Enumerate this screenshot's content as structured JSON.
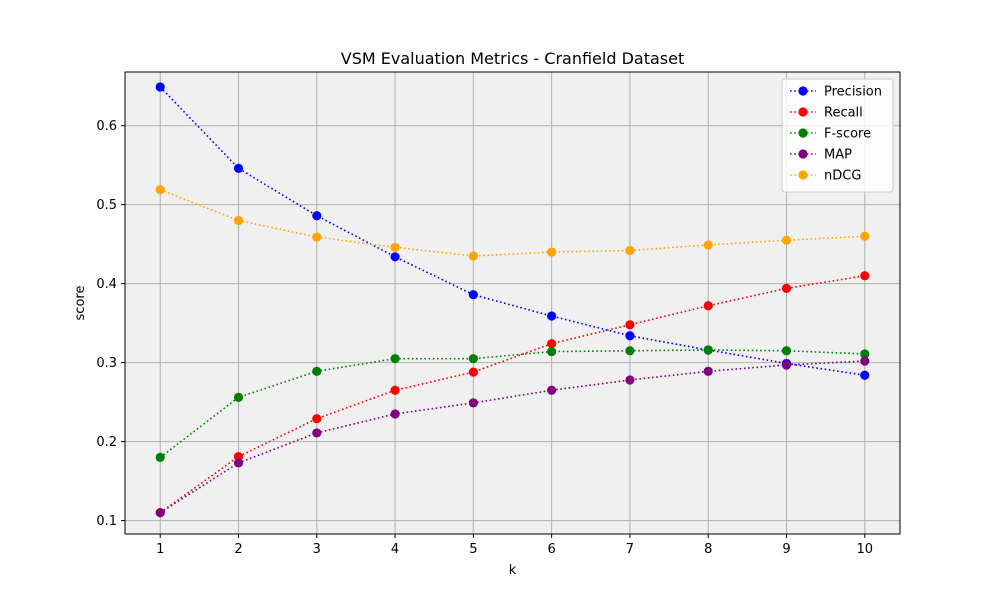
{
  "chart_data": {
    "type": "line",
    "title": "VSM Evaluation Metrics - Cranfield Dataset",
    "xlabel": "k",
    "ylabel": "score",
    "x": [
      1,
      2,
      3,
      4,
      5,
      6,
      7,
      8,
      9,
      10
    ],
    "xticks": [
      "1",
      "2",
      "3",
      "4",
      "5",
      "6",
      "7",
      "8",
      "9",
      "10"
    ],
    "yticks": [
      "0.1",
      "0.2",
      "0.3",
      "0.4",
      "0.5",
      "0.6"
    ],
    "ylim": [
      0.083,
      0.668
    ],
    "xlim": [
      0.55,
      10.45
    ],
    "grid": true,
    "legend_position": "top-right",
    "line_style": "dotted",
    "marker": "circle",
    "background": "#f0f0f0",
    "series": [
      {
        "name": "Precision",
        "color": "#0000ff",
        "values": [
          0.649,
          0.546,
          0.486,
          0.434,
          0.386,
          0.359,
          0.334,
          0.316,
          0.299,
          0.284
        ]
      },
      {
        "name": "Recall",
        "color": "#ff0000",
        "values": [
          0.11,
          0.181,
          0.229,
          0.265,
          0.288,
          0.324,
          0.348,
          0.372,
          0.394,
          0.41
        ]
      },
      {
        "name": "F-score",
        "color": "#008000",
        "values": [
          0.18,
          0.256,
          0.289,
          0.305,
          0.305,
          0.314,
          0.315,
          0.316,
          0.315,
          0.311
        ]
      },
      {
        "name": "MAP",
        "color": "#800080",
        "values": [
          0.11,
          0.173,
          0.211,
          0.235,
          0.249,
          0.265,
          0.278,
          0.289,
          0.297,
          0.302
        ]
      },
      {
        "name": "nDCG",
        "color": "#ffa500",
        "values": [
          0.519,
          0.48,
          0.459,
          0.446,
          0.435,
          0.44,
          0.442,
          0.449,
          0.455,
          0.46
        ]
      }
    ]
  }
}
